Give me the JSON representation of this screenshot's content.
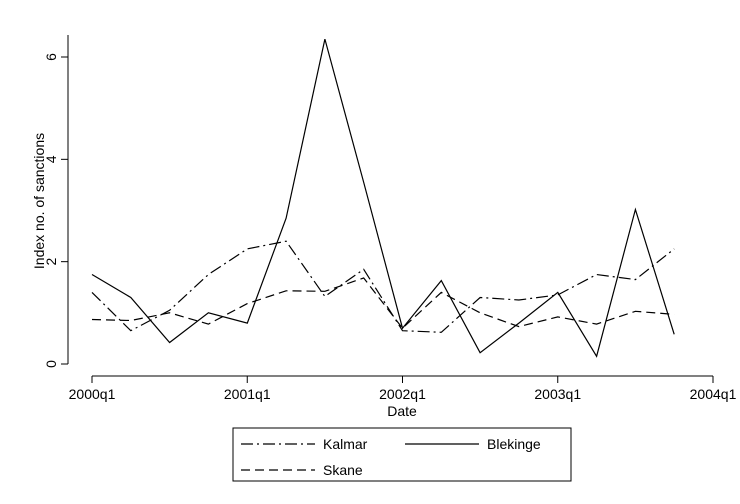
{
  "chart_data": {
    "type": "line",
    "title": "",
    "xlabel": "Date",
    "ylabel": "Index no. of sanctions",
    "x": [
      "2000q1",
      "2000q2",
      "2000q3",
      "2000q4",
      "2001q1",
      "2001q2",
      "2001q3",
      "2001q4",
      "2002q1",
      "2002q2",
      "2002q3",
      "2002q4",
      "2003q1",
      "2003q2",
      "2003q3",
      "2003q4"
    ],
    "x_ticks": [
      "2000q1",
      "2001q1",
      "2002q1",
      "2003q1",
      "2004q1"
    ],
    "y_ticks": [
      "0",
      "2",
      "4",
      "6"
    ],
    "ylim": [
      0,
      6.5
    ],
    "grid": false,
    "legend_position": "bottom",
    "series": [
      {
        "name": "Kalmar",
        "dash": "dashdot",
        "values": [
          1.4,
          0.65,
          1.05,
          1.75,
          2.25,
          2.4,
          1.32,
          1.85,
          0.65,
          0.62,
          1.3,
          1.25,
          1.35,
          1.75,
          1.65,
          2.25
        ]
      },
      {
        "name": "Blekinge",
        "dash": "solid",
        "values": [
          1.75,
          1.3,
          0.42,
          1.0,
          0.8,
          2.85,
          6.35,
          3.55,
          0.7,
          1.63,
          0.22,
          0.8,
          1.4,
          0.15,
          3.02,
          0.58
        ]
      },
      {
        "name": "Skane",
        "dash": "dashed",
        "values": [
          0.87,
          0.85,
          1.0,
          0.78,
          1.18,
          1.43,
          1.42,
          1.68,
          0.7,
          1.4,
          1.0,
          0.73,
          0.92,
          0.78,
          1.03,
          0.97
        ]
      }
    ]
  }
}
